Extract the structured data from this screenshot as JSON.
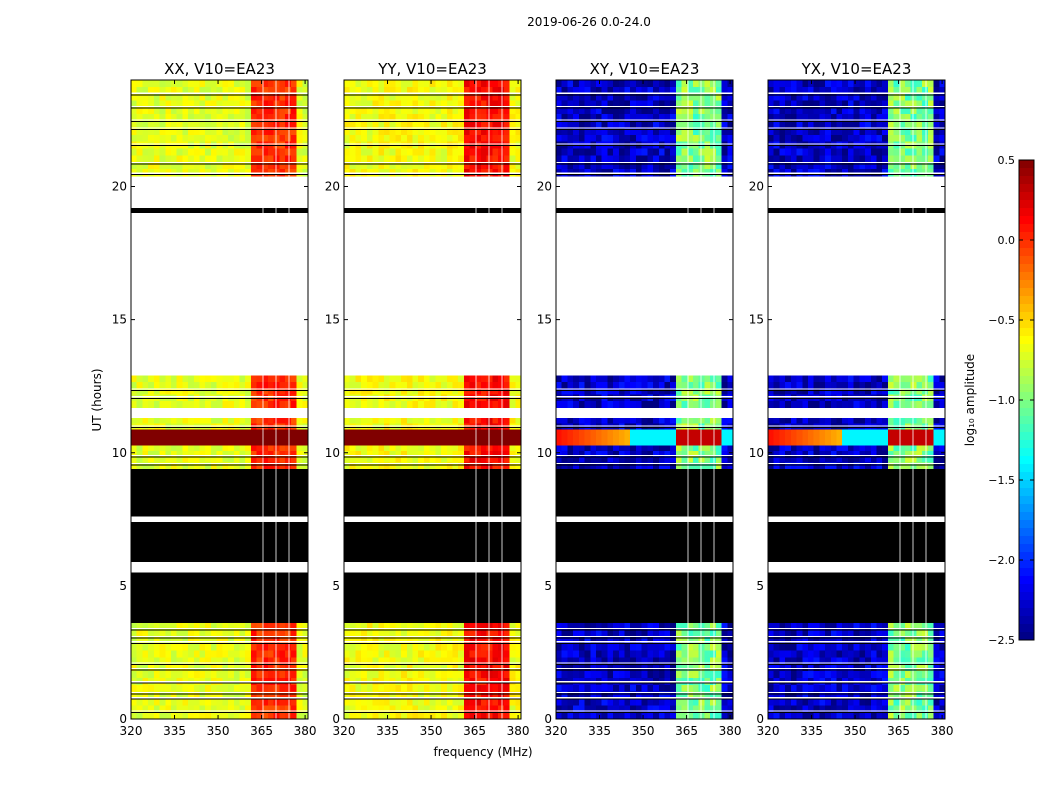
{
  "chart_data": {
    "type": "heatmap",
    "suptitle": "2019-06-26 0.0-24.0",
    "xlabel": "frequency (MHz)",
    "ylabel": "UT (hours)",
    "xlim": [
      320,
      381
    ],
    "ylim": [
      0,
      24
    ],
    "xticks": [
      {
        "v": 320,
        "label": "320"
      },
      {
        "v": 335,
        "label": "335"
      },
      {
        "v": 350,
        "label": "350"
      },
      {
        "v": 365,
        "label": "365"
      },
      {
        "v": 380,
        "label": "380"
      }
    ],
    "yticks": [
      {
        "v": 0,
        "label": "0"
      },
      {
        "v": 5,
        "label": "5"
      },
      {
        "v": 10,
        "label": "10"
      },
      {
        "v": 15,
        "label": "15"
      },
      {
        "v": 20,
        "label": "20"
      }
    ],
    "colorbar": {
      "label": "log₁₀ amplitude",
      "range": [
        -2.5,
        0.5
      ],
      "ticks": [
        {
          "v": 0.5,
          "label": "0.5"
        },
        {
          "v": 0.0,
          "label": "0.0"
        },
        {
          "v": -0.5,
          "label": "−0.5"
        },
        {
          "v": -1.0,
          "label": "−1.0"
        },
        {
          "v": -1.5,
          "label": "−1.5"
        },
        {
          "v": -2.0,
          "label": "−2.0"
        },
        {
          "v": -2.5,
          "label": "−2.5"
        }
      ],
      "colormap": "jet"
    },
    "panels": [
      {
        "title": "XX, V10=EA23",
        "kind": "parallel",
        "base_level": -0.7,
        "rfi_level": 0.0
      },
      {
        "title": "YY, V10=EA23",
        "kind": "parallel",
        "base_level": -0.65,
        "rfi_level": 0.1
      },
      {
        "title": "XY, V10=EA23",
        "kind": "cross",
        "base_level": -2.3,
        "rfi_level": -1.0
      },
      {
        "title": "YX, V10=EA23",
        "kind": "cross",
        "base_level": -2.3,
        "rfi_level": -1.0
      }
    ],
    "rfi_band_mhz": [
      362,
      378
    ],
    "rfi_gaps_mhz": [
      365.5,
      370,
      374.5
    ],
    "time_segments": [
      {
        "t0": 0.0,
        "t1": 3.6,
        "state": "data"
      },
      {
        "t0": 3.6,
        "t1": 5.5,
        "state": "zero"
      },
      {
        "t0": 5.5,
        "t1": 5.9,
        "state": "blank"
      },
      {
        "t0": 5.9,
        "t1": 7.4,
        "state": "zero"
      },
      {
        "t0": 7.4,
        "t1": 7.6,
        "state": "blank"
      },
      {
        "t0": 7.6,
        "t1": 9.4,
        "state": "zero"
      },
      {
        "t0": 9.4,
        "t1": 10.3,
        "state": "data"
      },
      {
        "t0": 10.3,
        "t1": 10.9,
        "state": "saturated"
      },
      {
        "t0": 10.9,
        "t1": 11.3,
        "state": "data"
      },
      {
        "t0": 11.3,
        "t1": 11.7,
        "state": "blank"
      },
      {
        "t0": 11.7,
        "t1": 12.9,
        "state": "data"
      },
      {
        "t0": 12.9,
        "t1": 19.0,
        "state": "blank"
      },
      {
        "t0": 19.0,
        "t1": 19.2,
        "state": "zero"
      },
      {
        "t0": 19.2,
        "t1": 20.4,
        "state": "blank"
      },
      {
        "t0": 20.4,
        "t1": 24.0,
        "state": "data"
      }
    ],
    "flag_lines_ut": [
      0.3,
      0.8,
      1.0,
      1.4,
      1.9,
      2.1,
      2.9,
      3.1,
      3.4,
      9.6,
      9.9,
      11.0,
      12.1,
      12.4,
      20.5,
      20.9,
      21.6,
      22.2,
      22.5,
      23.0,
      23.5
    ]
  }
}
